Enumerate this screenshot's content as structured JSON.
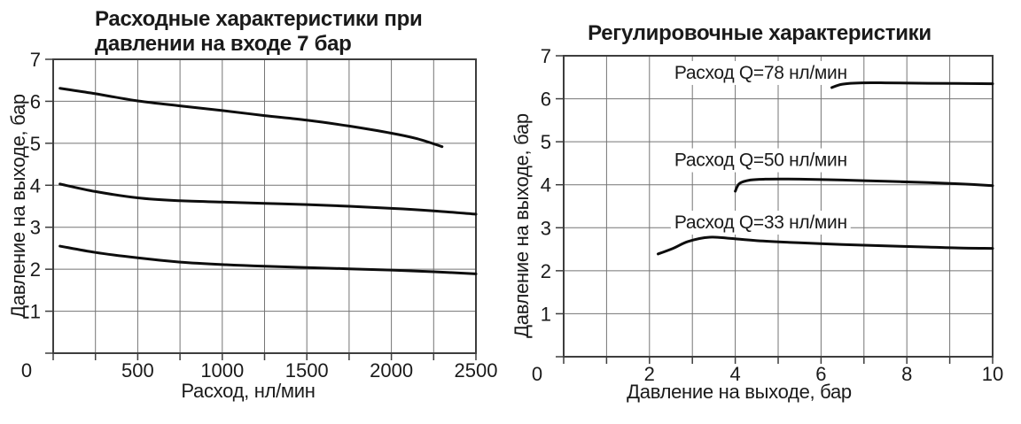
{
  "figure": {
    "background": "#ffffff",
    "text_color": "#1a1a1a",
    "grid_color": "#757575",
    "axis_color": "#3d3d3d",
    "curve_color": "#0d0d0d"
  },
  "chart_data": [
    {
      "type": "line",
      "title_lines": [
        "Расходные характеристики при",
        "давлении на входе 7 бар"
      ],
      "xlabel": "Расход, нл/мин",
      "ylabel": "Давление на выходе, бар",
      "xlim": [
        0,
        2500
      ],
      "ylim": [
        0,
        7
      ],
      "x_grid_step": 250,
      "y_grid_step": 1,
      "grid": true,
      "legend": "none",
      "x_tick_labels": [
        0,
        500,
        1000,
        1500,
        2000,
        2500
      ],
      "y_tick_labels": [
        1,
        2,
        3,
        4,
        5,
        6,
        7
      ],
      "series": [
        {
          "name": "curve-top-6.3bar",
          "x": [
            40,
            250,
            500,
            750,
            1000,
            1250,
            1500,
            1750,
            2000,
            2150,
            2300
          ],
          "y": [
            6.31,
            6.18,
            6.01,
            5.89,
            5.78,
            5.66,
            5.55,
            5.41,
            5.24,
            5.11,
            4.92
          ]
        },
        {
          "name": "curve-middle-4bar",
          "x": [
            40,
            250,
            500,
            750,
            1000,
            1250,
            1500,
            1750,
            2000,
            2250,
            2500
          ],
          "y": [
            4.03,
            3.85,
            3.7,
            3.63,
            3.6,
            3.57,
            3.54,
            3.5,
            3.45,
            3.39,
            3.31
          ]
        },
        {
          "name": "curve-bottom-2.5bar",
          "x": [
            40,
            250,
            500,
            750,
            1000,
            1250,
            1500,
            1750,
            2000,
            2250,
            2500
          ],
          "y": [
            2.55,
            2.4,
            2.27,
            2.17,
            2.11,
            2.07,
            2.04,
            2.01,
            1.98,
            1.94,
            1.89
          ]
        }
      ]
    },
    {
      "type": "line",
      "title_lines": [
        "Регулировочные характеристики"
      ],
      "xlabel": "Давление на выходе, бар",
      "ylabel": "Давление на выходе, бар",
      "xlim": [
        0,
        10
      ],
      "ylim": [
        0,
        7
      ],
      "x_grid_step": 1,
      "y_grid_step": 1,
      "grid": true,
      "legend": "inline-labels",
      "x_tick_labels": [
        0,
        2,
        4,
        6,
        8,
        10
      ],
      "y_tick_labels": [
        1,
        2,
        3,
        4,
        5,
        6,
        7
      ],
      "series": [
        {
          "name": "flow-q78",
          "label": "Расход Q=78 нл/мин",
          "label_at": {
            "x": 2.58,
            "y": 6.63
          },
          "x": [
            6.25,
            6.5,
            6.95,
            7.5,
            8.5,
            10
          ],
          "y": [
            6.26,
            6.34,
            6.37,
            6.37,
            6.36,
            6.35
          ]
        },
        {
          "name": "flow-q50",
          "label": "Расход Q=50 нл/мин",
          "label_at": {
            "x": 2.58,
            "y": 4.6
          },
          "x": [
            4.0,
            4.1,
            4.35,
            4.7,
            5.5,
            6.5,
            7.5,
            8.5,
            9.25,
            10
          ],
          "y": [
            3.85,
            4.03,
            4.11,
            4.13,
            4.13,
            4.11,
            4.08,
            4.05,
            4.02,
            3.98
          ]
        },
        {
          "name": "flow-q33",
          "label": "Расход Q=33 нл/мин",
          "label_at": {
            "x": 2.58,
            "y": 3.15
          },
          "x": [
            2.2,
            2.55,
            2.9,
            3.4,
            3.9,
            4.5,
            5.5,
            6.5,
            7.5,
            8.5,
            9.2,
            10
          ],
          "y": [
            2.39,
            2.52,
            2.68,
            2.78,
            2.75,
            2.7,
            2.65,
            2.61,
            2.58,
            2.55,
            2.53,
            2.52
          ]
        }
      ]
    }
  ]
}
